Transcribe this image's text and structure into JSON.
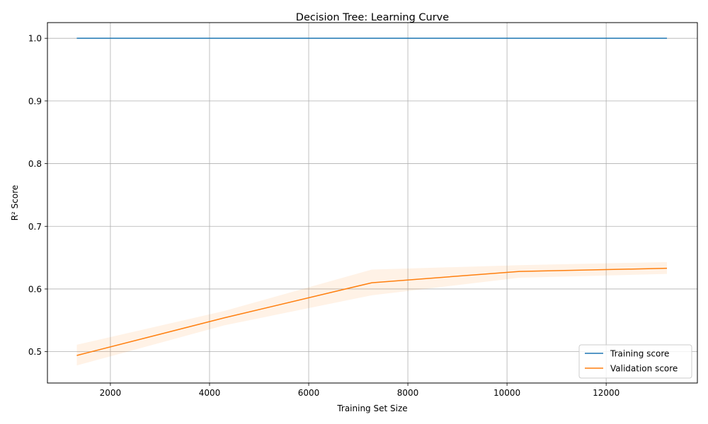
{
  "chart_data": {
    "type": "line",
    "title": "Decision Tree: Learning Curve",
    "xlabel": "Training Set Size",
    "ylabel": "R² Score",
    "xlim": [
      730,
      13840
    ],
    "ylim": [
      0.45,
      1.025
    ],
    "x_ticks": [
      2000,
      4000,
      6000,
      8000,
      10000,
      12000
    ],
    "y_ticks": [
      0.5,
      0.6,
      0.7,
      0.8,
      0.9,
      1.0
    ],
    "y_tick_labels": [
      "0.5",
      "0.6",
      "0.7",
      "0.8",
      "0.9",
      "1.0"
    ],
    "grid": true,
    "legend_position": "lower-right",
    "x": [
      1322,
      4298,
      7274,
      10250,
      13226
    ],
    "series": [
      {
        "name": "Training score",
        "color": "#1f77b4",
        "values": [
          1.0,
          1.0,
          1.0,
          1.0,
          1.0
        ],
        "band_low": [
          1.0,
          1.0,
          1.0,
          1.0,
          1.0
        ],
        "band_high": [
          1.0,
          1.0,
          1.0,
          1.0,
          1.0
        ]
      },
      {
        "name": "Validation score",
        "color": "#ff7f0e",
        "values": [
          0.494,
          0.554,
          0.61,
          0.628,
          0.633
        ],
        "band_low": [
          0.478,
          0.542,
          0.59,
          0.618,
          0.624
        ],
        "band_high": [
          0.511,
          0.565,
          0.631,
          0.638,
          0.643
        ]
      }
    ]
  }
}
